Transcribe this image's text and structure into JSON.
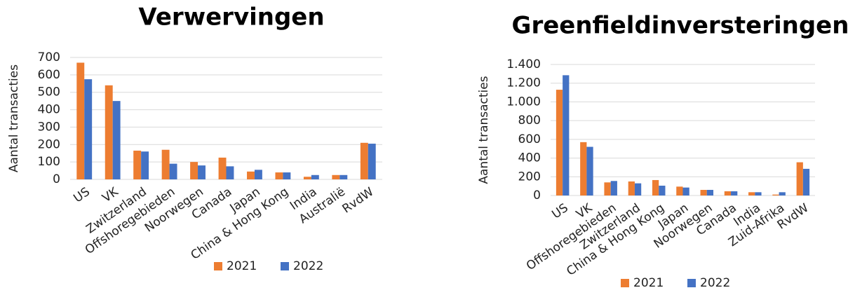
{
  "chart_data": [
    {
      "type": "bar",
      "title": "Verwervingen",
      "y_label": "Aantal transacties",
      "categories": [
        "US",
        "VK",
        "Zwitzerland",
        "Offshoregebieden",
        "Noorwegen",
        "Canada",
        "Japan",
        "China & Hong Kong",
        "India",
        "Australië",
        "RvdW"
      ],
      "series": [
        {
          "name": "2021",
          "color": "#ED7D31",
          "values": [
            670,
            540,
            165,
            170,
            100,
            125,
            45,
            40,
            15,
            25,
            210
          ]
        },
        {
          "name": "2022",
          "color": "#4472C4",
          "values": [
            575,
            450,
            160,
            90,
            80,
            75,
            55,
            40,
            25,
            25,
            205
          ]
        }
      ],
      "ylim": [
        0,
        700
      ],
      "yticks": [
        0,
        100,
        200,
        300,
        400,
        500,
        600,
        700
      ],
      "grid": true,
      "legend": "bottom"
    },
    {
      "type": "bar",
      "title": "Greenfieldinversteringen",
      "y_label": "Aantal transacties",
      "categories": [
        "US",
        "VK",
        "Offshoregebieden",
        "Zwitzerland",
        "China & Hong Kong",
        "Japan",
        "Noorwegen",
        "Canada",
        "India",
        "Zuid-Afrika",
        "RvdW"
      ],
      "series": [
        {
          "name": "2021",
          "color": "#ED7D31",
          "values": [
            1130,
            570,
            140,
            150,
            165,
            95,
            60,
            45,
            35,
            10,
            355
          ]
        },
        {
          "name": "2022",
          "color": "#4472C4",
          "values": [
            1285,
            520,
            155,
            130,
            105,
            85,
            60,
            45,
            35,
            35,
            285
          ]
        }
      ],
      "ylim": [
        0,
        1400
      ],
      "yticks": [
        0,
        200,
        400,
        600,
        800,
        {
          "value": 1000,
          "label": "1.000"
        },
        {
          "value": 1200,
          "label": "1.200"
        },
        {
          "value": 1400,
          "label": "1.400"
        }
      ],
      "grid": true,
      "legend": "bottom"
    }
  ]
}
